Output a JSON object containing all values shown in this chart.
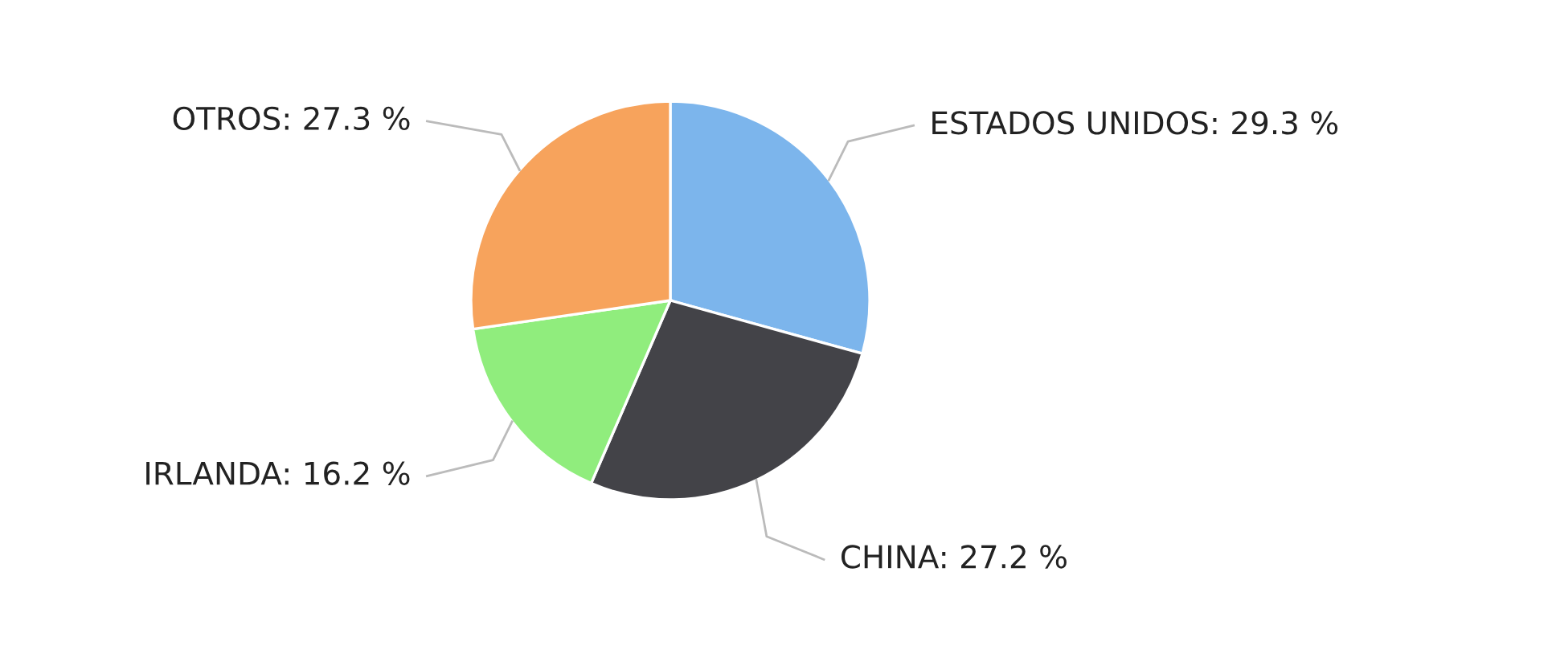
{
  "chart_data": {
    "type": "pie",
    "categories": [
      "ESTADOS UNIDOS",
      "CHINA",
      "IRLANDA",
      "OTROS"
    ],
    "values": [
      29.3,
      27.2,
      16.2,
      27.3
    ],
    "value_labels": [
      "29.3 %",
      "27.2 %",
      "16.2 %",
      "27.3 %"
    ],
    "colors": [
      "#7cb5ec",
      "#434348",
      "#90ed7d",
      "#f7a35c"
    ],
    "legend": false
  }
}
